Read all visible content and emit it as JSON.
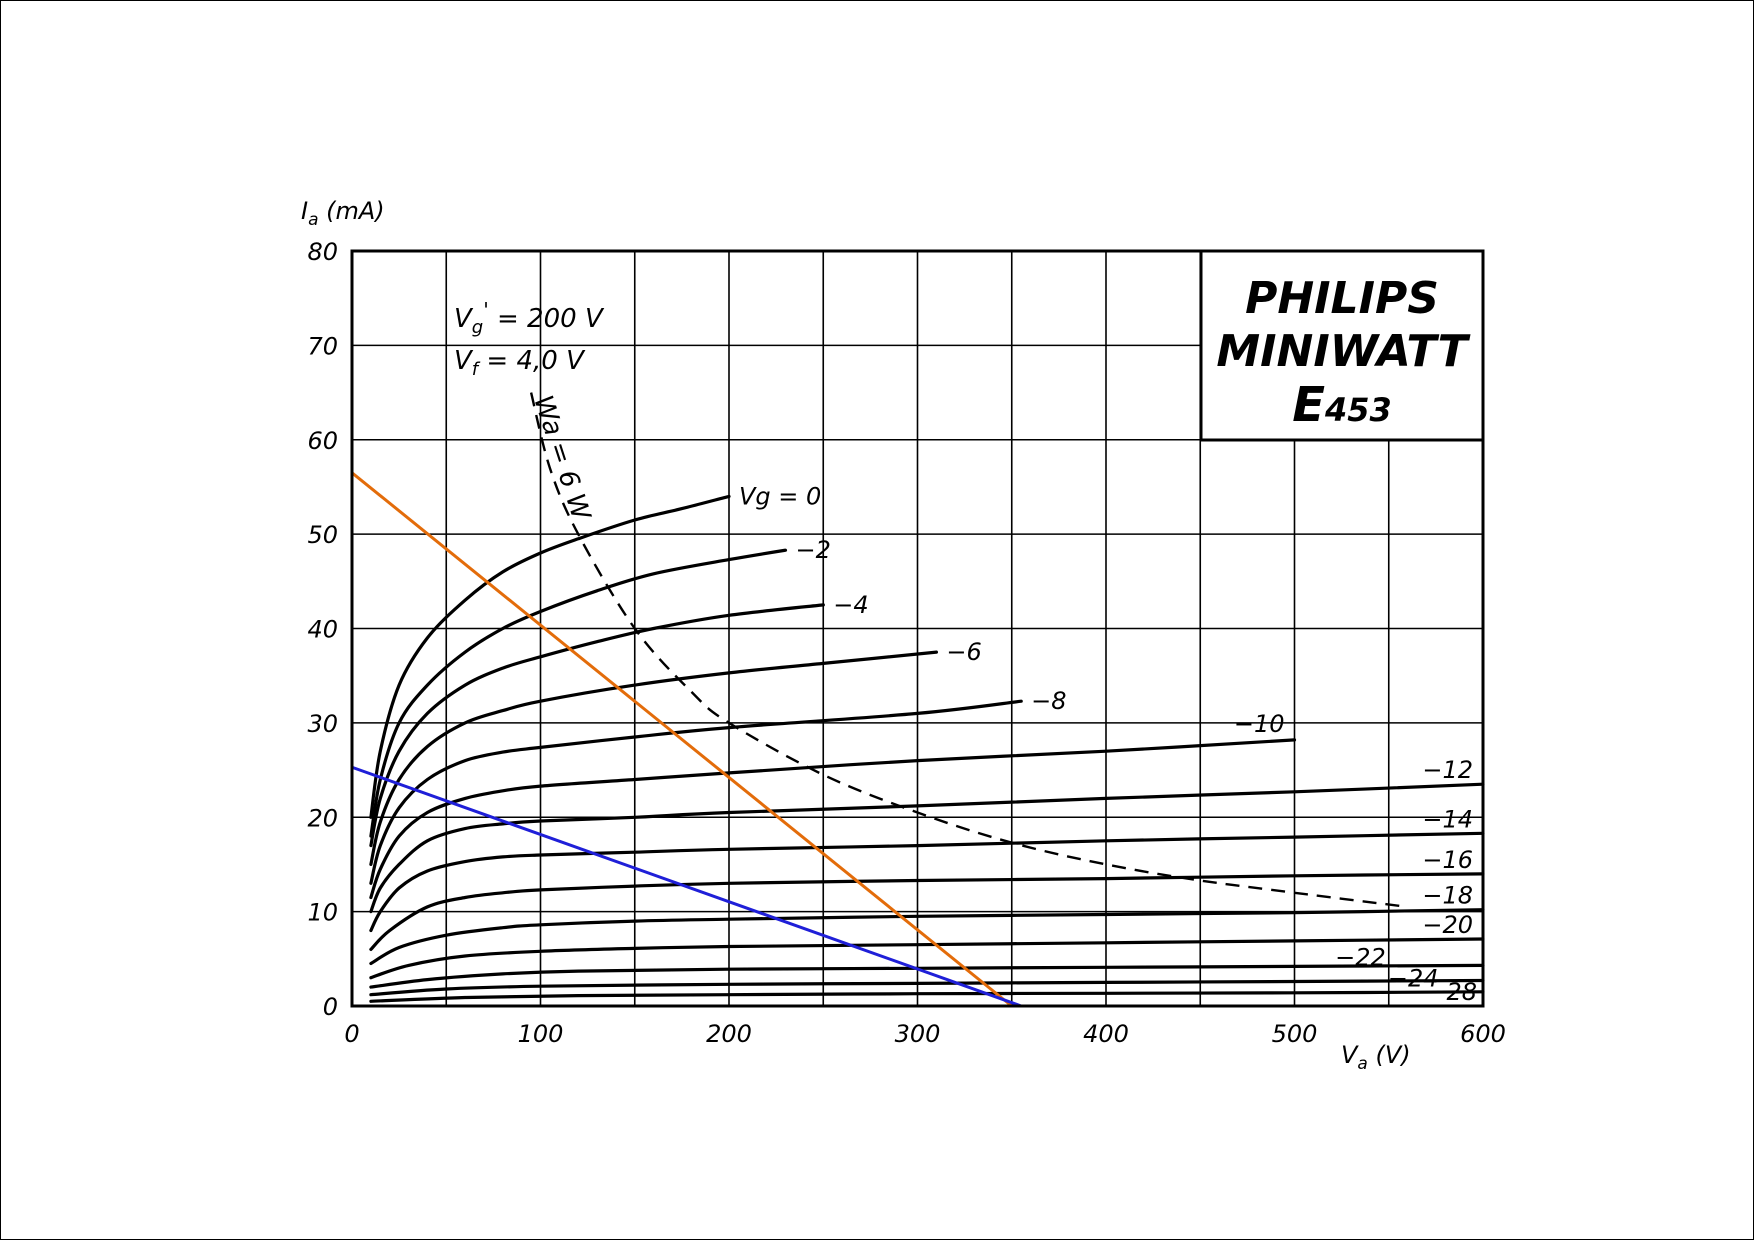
{
  "chart_data": {
    "type": "line",
    "title": "",
    "xlabel": "Va (V)",
    "ylabel": "Ia (mA)",
    "xlabel_main": "V",
    "xlabel_sub": "a",
    "xlabel_unit": " (V)",
    "ylabel_main": "I",
    "ylabel_sub": "a",
    "ylabel_unit": " (mA)",
    "xlim": [
      0,
      600
    ],
    "ylim": [
      0,
      80
    ],
    "grid": true,
    "x_ticks": [
      0,
      100,
      200,
      300,
      400,
      500,
      600
    ],
    "y_ticks": [
      0,
      10,
      20,
      30,
      40,
      50,
      60,
      70,
      80
    ],
    "x_tick_labels": [
      "0",
      "100",
      "200",
      "300",
      "400",
      "500",
      "600"
    ],
    "y_tick_labels": [
      "0",
      "10",
      "20",
      "30",
      "40",
      "50",
      "60",
      "70",
      "80"
    ],
    "brand": {
      "line1": "PHILIPS",
      "line2": "MINIWATT",
      "line3_big": "E",
      "line3_small": "453"
    },
    "conditions": [
      {
        "main": "V",
        "sub": "g",
        "prime": "'",
        "rest": " = 200 V"
      },
      {
        "main": "V",
        "sub": "f",
        "prime": "",
        "rest": " = 4,0 V"
      }
    ],
    "power_curve_label": "Wa = 6 W",
    "power_curve": {
      "name": "Wa = 6W",
      "style": "dashed",
      "points": [
        [
          95,
          65
        ],
        [
          105,
          57
        ],
        [
          120,
          50
        ],
        [
          150,
          40
        ],
        [
          180,
          33.3
        ],
        [
          200,
          30
        ],
        [
          250,
          24.5
        ],
        [
          300,
          20.5
        ],
        [
          350,
          17.3
        ],
        [
          400,
          15
        ],
        [
          450,
          13.3
        ],
        [
          500,
          12
        ],
        [
          560,
          10.5
        ]
      ]
    },
    "series": [
      {
        "name": "",
        "label": "Vg = 0",
        "points": [
          [
            10,
            20
          ],
          [
            15,
            27
          ],
          [
            25,
            34
          ],
          [
            40,
            39
          ],
          [
            60,
            43
          ],
          [
            80,
            46
          ],
          [
            100,
            48
          ],
          [
            120,
            49.5
          ],
          [
            150,
            51.5
          ],
          [
            175,
            52.7
          ],
          [
            200,
            54
          ]
        ]
      },
      {
        "name": "",
        "label": "−2",
        "points": [
          [
            10,
            18
          ],
          [
            15,
            24
          ],
          [
            25,
            30
          ],
          [
            40,
            34
          ],
          [
            60,
            37.5
          ],
          [
            80,
            40
          ],
          [
            100,
            41.8
          ],
          [
            130,
            44
          ],
          [
            160,
            45.8
          ],
          [
            200,
            47.3
          ],
          [
            230,
            48.3
          ]
        ]
      },
      {
        "name": "",
        "label": "−4",
        "points": [
          [
            10,
            17
          ],
          [
            15,
            22
          ],
          [
            25,
            27
          ],
          [
            40,
            31
          ],
          [
            60,
            34
          ],
          [
            80,
            35.8
          ],
          [
            100,
            37
          ],
          [
            130,
            38.6
          ],
          [
            160,
            40
          ],
          [
            200,
            41.4
          ],
          [
            250,
            42.5
          ]
        ]
      },
      {
        "name": "",
        "label": "−6",
        "points": [
          [
            10,
            15
          ],
          [
            15,
            19.5
          ],
          [
            25,
            24
          ],
          [
            40,
            27.5
          ],
          [
            60,
            30
          ],
          [
            80,
            31.3
          ],
          [
            100,
            32.3
          ],
          [
            150,
            34
          ],
          [
            200,
            35.3
          ],
          [
            250,
            36.3
          ],
          [
            310,
            37.5
          ]
        ]
      },
      {
        "name": "",
        "label": "−8",
        "points": [
          [
            10,
            13
          ],
          [
            15,
            17
          ],
          [
            25,
            21
          ],
          [
            40,
            24
          ],
          [
            60,
            26
          ],
          [
            80,
            26.9
          ],
          [
            100,
            27.4
          ],
          [
            150,
            28.5
          ],
          [
            200,
            29.5
          ],
          [
            300,
            31
          ],
          [
            355,
            32.3
          ]
        ]
      },
      {
        "name": "",
        "label": "−10",
        "points": [
          [
            10,
            11.5
          ],
          [
            15,
            14.5
          ],
          [
            25,
            18
          ],
          [
            40,
            20.5
          ],
          [
            60,
            22
          ],
          [
            80,
            22.8
          ],
          [
            100,
            23.3
          ],
          [
            150,
            24
          ],
          [
            200,
            24.7
          ],
          [
            300,
            26
          ],
          [
            400,
            27
          ],
          [
            500,
            28.2
          ]
        ]
      },
      {
        "name": "",
        "label": "−12",
        "points": [
          [
            10,
            10
          ],
          [
            15,
            12.5
          ],
          [
            25,
            15
          ],
          [
            40,
            17.5
          ],
          [
            60,
            18.8
          ],
          [
            80,
            19.3
          ],
          [
            100,
            19.6
          ],
          [
            150,
            20
          ],
          [
            200,
            20.5
          ],
          [
            300,
            21.2
          ],
          [
            400,
            22
          ],
          [
            500,
            22.7
          ],
          [
            600,
            23.5
          ]
        ]
      },
      {
        "name": "",
        "label": "−14",
        "points": [
          [
            10,
            8
          ],
          [
            15,
            10
          ],
          [
            25,
            12.5
          ],
          [
            40,
            14.3
          ],
          [
            60,
            15.3
          ],
          [
            80,
            15.8
          ],
          [
            100,
            16
          ],
          [
            150,
            16.3
          ],
          [
            200,
            16.6
          ],
          [
            300,
            17
          ],
          [
            400,
            17.5
          ],
          [
            500,
            17.9
          ],
          [
            600,
            18.3
          ]
        ]
      },
      {
        "name": "",
        "label": "−16",
        "points": [
          [
            10,
            6
          ],
          [
            20,
            8
          ],
          [
            40,
            10.5
          ],
          [
            60,
            11.5
          ],
          [
            80,
            12
          ],
          [
            100,
            12.3
          ],
          [
            150,
            12.7
          ],
          [
            200,
            13
          ],
          [
            300,
            13.3
          ],
          [
            400,
            13.5
          ],
          [
            500,
            13.8
          ],
          [
            600,
            14
          ]
        ]
      },
      {
        "name": "",
        "label": "−18",
        "points": [
          [
            10,
            4.5
          ],
          [
            25,
            6.2
          ],
          [
            50,
            7.5
          ],
          [
            80,
            8.3
          ],
          [
            100,
            8.6
          ],
          [
            150,
            9
          ],
          [
            200,
            9.2
          ],
          [
            300,
            9.5
          ],
          [
            400,
            9.7
          ],
          [
            500,
            9.9
          ],
          [
            600,
            10.2
          ]
        ]
      },
      {
        "name": "",
        "label": "−20",
        "points": [
          [
            10,
            3
          ],
          [
            30,
            4.3
          ],
          [
            60,
            5.3
          ],
          [
            100,
            5.8
          ],
          [
            150,
            6.1
          ],
          [
            200,
            6.3
          ],
          [
            300,
            6.5
          ],
          [
            400,
            6.7
          ],
          [
            500,
            6.9
          ],
          [
            600,
            7.1
          ]
        ]
      },
      {
        "name": "",
        "label": "−22",
        "points": [
          [
            10,
            2
          ],
          [
            40,
            2.8
          ],
          [
            80,
            3.4
          ],
          [
            120,
            3.7
          ],
          [
            200,
            3.9
          ],
          [
            300,
            4
          ],
          [
            400,
            4.1
          ],
          [
            500,
            4.2
          ],
          [
            600,
            4.3
          ]
        ]
      },
      {
        "name": "",
        "label": "−24",
        "points": [
          [
            10,
            1.2
          ],
          [
            50,
            1.8
          ],
          [
            100,
            2.1
          ],
          [
            200,
            2.3
          ],
          [
            300,
            2.4
          ],
          [
            400,
            2.5
          ],
          [
            500,
            2.6
          ],
          [
            600,
            2.7
          ]
        ]
      },
      {
        "name": "",
        "label": "−28",
        "points": [
          [
            10,
            0.5
          ],
          [
            60,
            0.9
          ],
          [
            120,
            1.1
          ],
          [
            200,
            1.2
          ],
          [
            300,
            1.3
          ],
          [
            400,
            1.35
          ],
          [
            500,
            1.4
          ],
          [
            600,
            1.5
          ]
        ]
      }
    ],
    "load_lines": [
      {
        "name": "",
        "color": "#E36C0A",
        "points": [
          [
            0,
            56.5
          ],
          [
            350,
            0
          ]
        ]
      },
      {
        "name": "",
        "color": "#1F1FD8",
        "points": [
          [
            0,
            25.3
          ],
          [
            355,
            0
          ]
        ]
      }
    ],
    "colors": {
      "ink": "#000000",
      "orange": "#E36C0A",
      "blue": "#1F1FD8"
    }
  }
}
